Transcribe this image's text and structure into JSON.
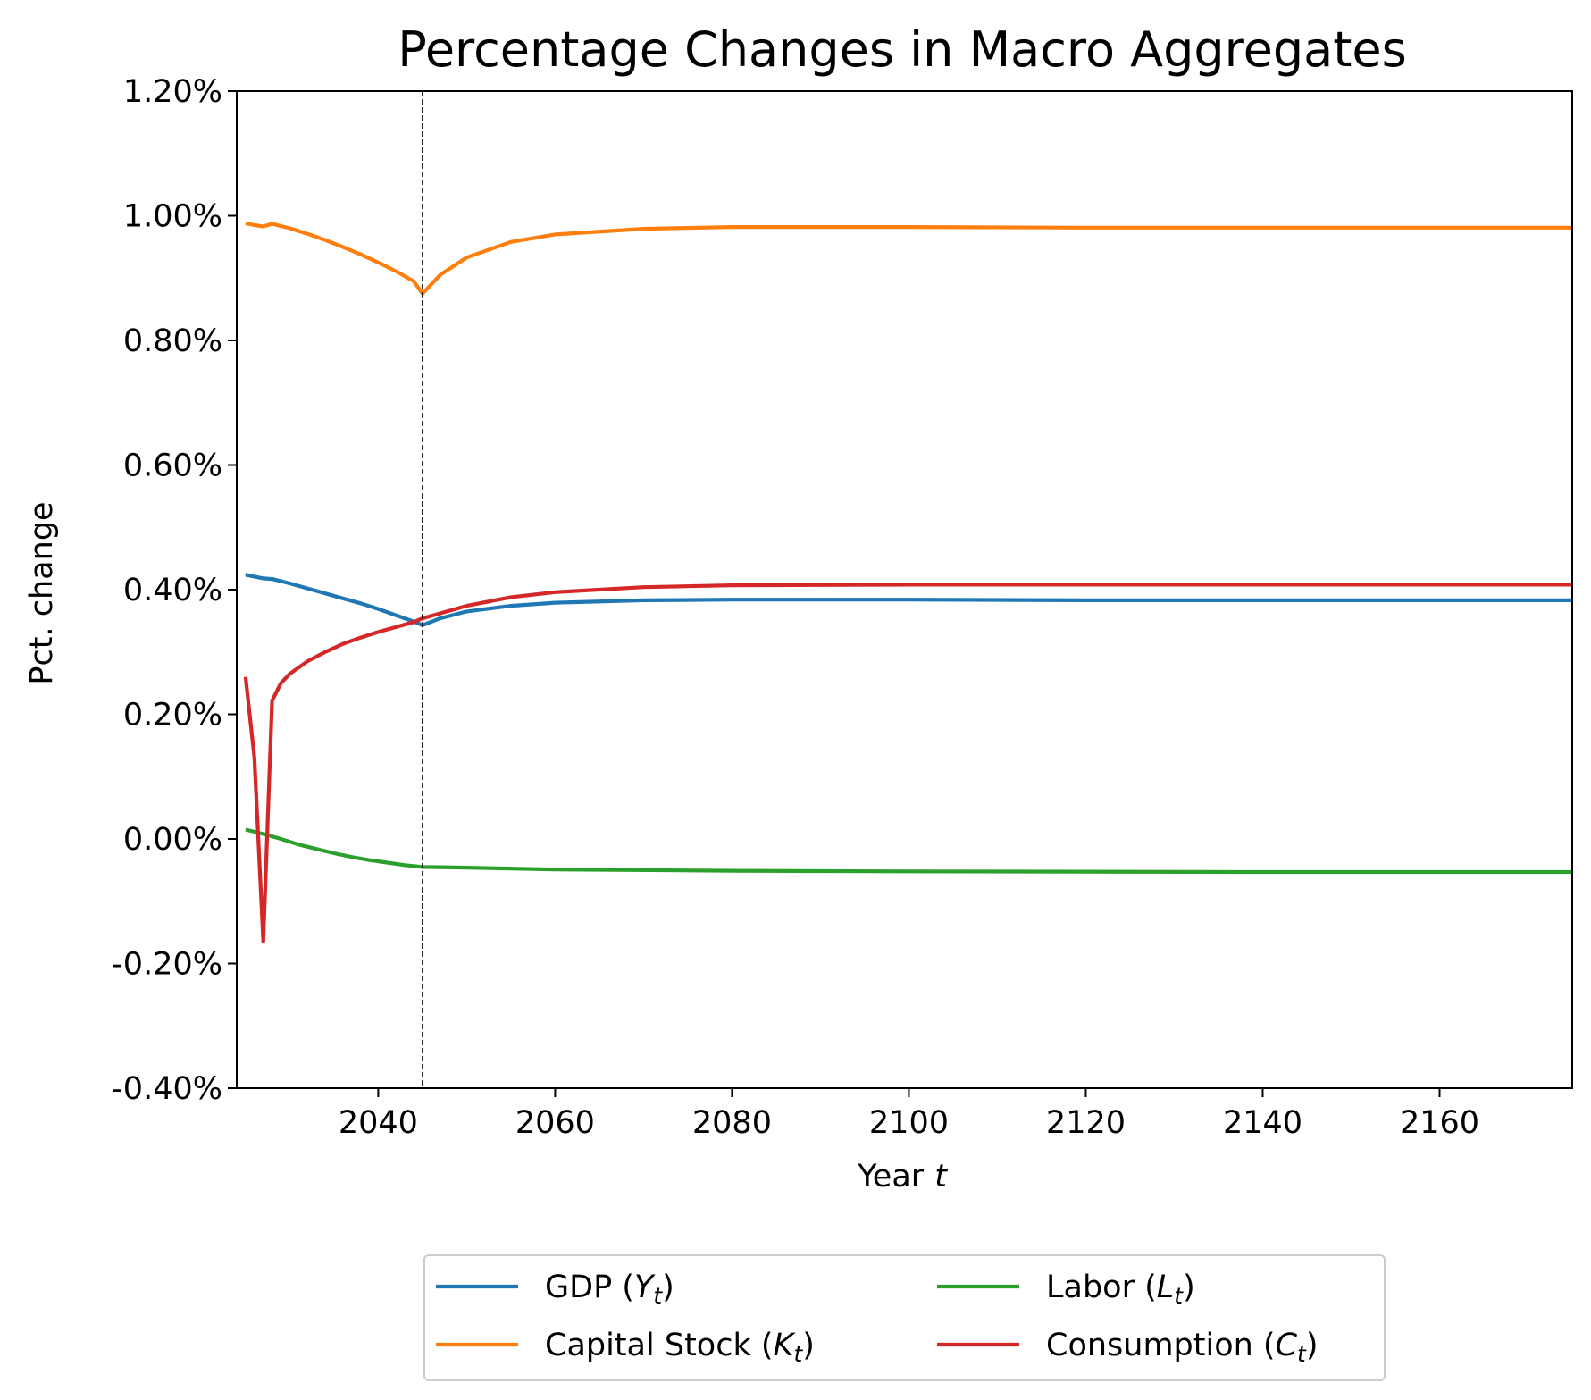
{
  "chart_data": {
    "type": "line",
    "title": "Percentage Changes in Macro Aggregates",
    "xlabel": "Year",
    "xlabel_italic": "t",
    "ylabel": "Pct. change",
    "xlim": [
      2024,
      2175
    ],
    "ylim": [
      -0.004,
      0.012
    ],
    "x_ticks": [
      2040,
      2060,
      2080,
      2100,
      2120,
      2140,
      2160
    ],
    "y_ticks": [
      -0.004,
      -0.002,
      0.0,
      0.002,
      0.004,
      0.006,
      0.008,
      0.01,
      0.012
    ],
    "y_tick_labels": [
      "-0.40%",
      "-0.20%",
      "0.00%",
      "0.20%",
      "0.40%",
      "0.60%",
      "0.80%",
      "1.00%",
      "1.20%"
    ],
    "reference_line_x": 2045,
    "legend_position": "below",
    "series": [
      {
        "name": "GDP",
        "name_math": "Y",
        "color": "#1f77b4",
        "points": [
          [
            2025,
            0.00424
          ],
          [
            2026,
            0.00421
          ],
          [
            2027,
            0.00418
          ],
          [
            2028,
            0.00417
          ],
          [
            2030,
            0.0041
          ],
          [
            2032,
            0.00402
          ],
          [
            2034,
            0.00394
          ],
          [
            2036,
            0.00386
          ],
          [
            2038,
            0.00378
          ],
          [
            2040,
            0.00369
          ],
          [
            2042,
            0.00359
          ],
          [
            2044,
            0.00349
          ],
          [
            2045,
            0.00343
          ],
          [
            2047,
            0.00354
          ],
          [
            2050,
            0.00365
          ],
          [
            2055,
            0.00374
          ],
          [
            2060,
            0.00379
          ],
          [
            2070,
            0.00383
          ],
          [
            2080,
            0.00384
          ],
          [
            2100,
            0.00384
          ],
          [
            2120,
            0.00383
          ],
          [
            2140,
            0.00383
          ],
          [
            2175,
            0.00383
          ]
        ]
      },
      {
        "name": "Capital Stock",
        "name_math": "K",
        "color": "#ff7f0e",
        "points": [
          [
            2025,
            0.00988
          ],
          [
            2026,
            0.00985
          ],
          [
            2027,
            0.00983
          ],
          [
            2028,
            0.00987
          ],
          [
            2030,
            0.0098
          ],
          [
            2032,
            0.00971
          ],
          [
            2034,
            0.00961
          ],
          [
            2036,
            0.0095
          ],
          [
            2038,
            0.00938
          ],
          [
            2040,
            0.00925
          ],
          [
            2042,
            0.00911
          ],
          [
            2044,
            0.00895
          ],
          [
            2045,
            0.00875
          ],
          [
            2047,
            0.00905
          ],
          [
            2050,
            0.00933
          ],
          [
            2055,
            0.00958
          ],
          [
            2060,
            0.0097
          ],
          [
            2070,
            0.00979
          ],
          [
            2080,
            0.00982
          ],
          [
            2100,
            0.00982
          ],
          [
            2120,
            0.00981
          ],
          [
            2140,
            0.00981
          ],
          [
            2175,
            0.00981
          ]
        ]
      },
      {
        "name": "Labor",
        "name_math": "L",
        "color": "#2ca02c",
        "points": [
          [
            2025,
            0.00015
          ],
          [
            2027,
            8e-05
          ],
          [
            2029,
            0.0
          ],
          [
            2031,
            -9e-05
          ],
          [
            2033,
            -0.00016
          ],
          [
            2035,
            -0.00023
          ],
          [
            2037,
            -0.00029
          ],
          [
            2039,
            -0.00034
          ],
          [
            2041,
            -0.00038
          ],
          [
            2043,
            -0.00042
          ],
          [
            2045,
            -0.00045
          ],
          [
            2050,
            -0.00046
          ],
          [
            2060,
            -0.00049
          ],
          [
            2080,
            -0.00051
          ],
          [
            2100,
            -0.00052
          ],
          [
            2140,
            -0.00053
          ],
          [
            2175,
            -0.00053
          ]
        ]
      },
      {
        "name": "Consumption",
        "name_math": "C",
        "color": "#d62728",
        "points": [
          [
            2025,
            0.0026
          ],
          [
            2026,
            0.0013
          ],
          [
            2027,
            -0.00165
          ],
          [
            2028,
            0.00222
          ],
          [
            2029,
            0.0025
          ],
          [
            2030,
            0.00265
          ],
          [
            2032,
            0.00285
          ],
          [
            2034,
            0.003
          ],
          [
            2036,
            0.00313
          ],
          [
            2038,
            0.00323
          ],
          [
            2040,
            0.00332
          ],
          [
            2042,
            0.0034
          ],
          [
            2044,
            0.00348
          ],
          [
            2045,
            0.00354
          ],
          [
            2047,
            0.00362
          ],
          [
            2050,
            0.00374
          ],
          [
            2055,
            0.00388
          ],
          [
            2060,
            0.00396
          ],
          [
            2070,
            0.00404
          ],
          [
            2080,
            0.00407
          ],
          [
            2100,
            0.00408
          ],
          [
            2140,
            0.00408
          ],
          [
            2175,
            0.00408
          ]
        ]
      }
    ]
  }
}
